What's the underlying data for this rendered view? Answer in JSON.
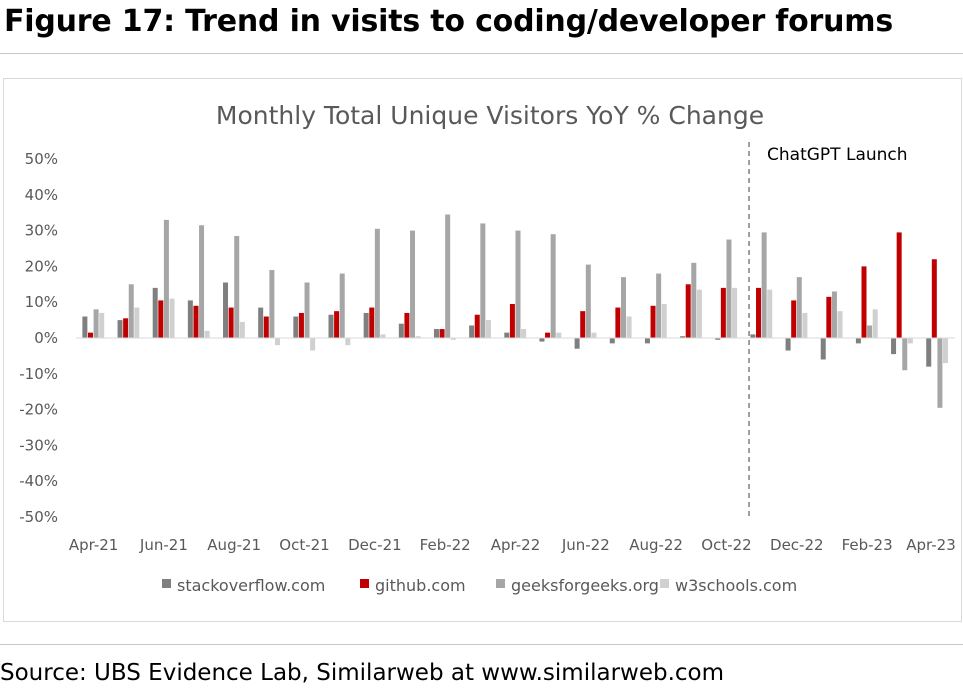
{
  "figure_title": "Figure 17: Trend in visits to coding/developer forums",
  "source_note": "Source: UBS Evidence Lab, Similarweb at www.similarweb.com",
  "chart_data": {
    "type": "bar",
    "title": "Monthly Total Unique Visitors YoY % Change",
    "xlabel": "",
    "ylabel": "",
    "ylim": [
      -50,
      50
    ],
    "y_ticks": [
      "50%",
      "40%",
      "30%",
      "20%",
      "10%",
      "0%",
      "-10%",
      "-20%",
      "-30%",
      "-40%",
      "-50%"
    ],
    "categories": [
      "Apr-21",
      "May-21",
      "Jun-21",
      "Jul-21",
      "Aug-21",
      "Sep-21",
      "Oct-21",
      "Nov-21",
      "Dec-21",
      "Jan-22",
      "Feb-22",
      "Mar-22",
      "Apr-22",
      "May-22",
      "Jun-22",
      "Jul-22",
      "Aug-22",
      "Sep-22",
      "Oct-22",
      "Nov-22",
      "Dec-22",
      "Jan-23",
      "Feb-23",
      "Mar-23",
      "Apr-23"
    ],
    "x_tick_labels": [
      "Apr-21",
      "Jun-21",
      "Aug-21",
      "Oct-21",
      "Dec-21",
      "Feb-22",
      "Apr-22",
      "Jun-22",
      "Aug-22",
      "Oct-22",
      "Dec-22",
      "Feb-23",
      "Apr-23"
    ],
    "series": [
      {
        "name": "stackoverflow.com",
        "color": "#7f7f7f",
        "values": [
          6,
          5,
          14,
          10.5,
          15.5,
          8.5,
          6,
          6.5,
          7,
          4,
          2.5,
          3.5,
          1.5,
          -1,
          -3,
          -1.5,
          -1.5,
          0.5,
          -0.5,
          1,
          -3.5,
          -6,
          -1.5,
          -4.5,
          -8
        ]
      },
      {
        "name": "github.com",
        "color": "#c00000",
        "values": [
          1.5,
          5.5,
          10.5,
          9,
          8.5,
          6,
          7,
          7.5,
          8.5,
          7,
          2.5,
          6.5,
          9.5,
          1.5,
          7.5,
          8.5,
          9,
          15,
          14,
          14,
          10.5,
          11.5,
          20,
          29.5,
          22
        ]
      },
      {
        "name": "geeksforgeeks.org",
        "color": "#a6a6a6",
        "values": [
          8,
          15,
          33,
          31.5,
          28.5,
          19,
          15.5,
          18,
          30.5,
          30,
          34.5,
          32,
          30,
          29,
          20.5,
          17,
          18,
          21,
          27.5,
          29.5,
          17,
          13,
          3.5,
          -9,
          -19.5
        ]
      },
      {
        "name": "w3schools.com",
        "color": "#d0d0d0",
        "values": [
          7,
          8.5,
          11,
          2,
          4.5,
          -2,
          -3.5,
          -2,
          1,
          0.5,
          -0.5,
          5,
          2.5,
          1.5,
          1.5,
          6,
          9.5,
          13.5,
          14,
          13.5,
          7,
          7.5,
          8,
          -1.5,
          -7
        ]
      }
    ],
    "annotation": {
      "text": "ChatGPT Launch",
      "position_between": [
        "Oct-22",
        "Nov-22"
      ],
      "style": "dashed vertical line"
    },
    "legend": {
      "placement": "bottom",
      "entries": [
        "stackoverflow.com",
        "github.com",
        "geeksforgeeks.org",
        "w3schools.com"
      ]
    },
    "grid": false
  }
}
